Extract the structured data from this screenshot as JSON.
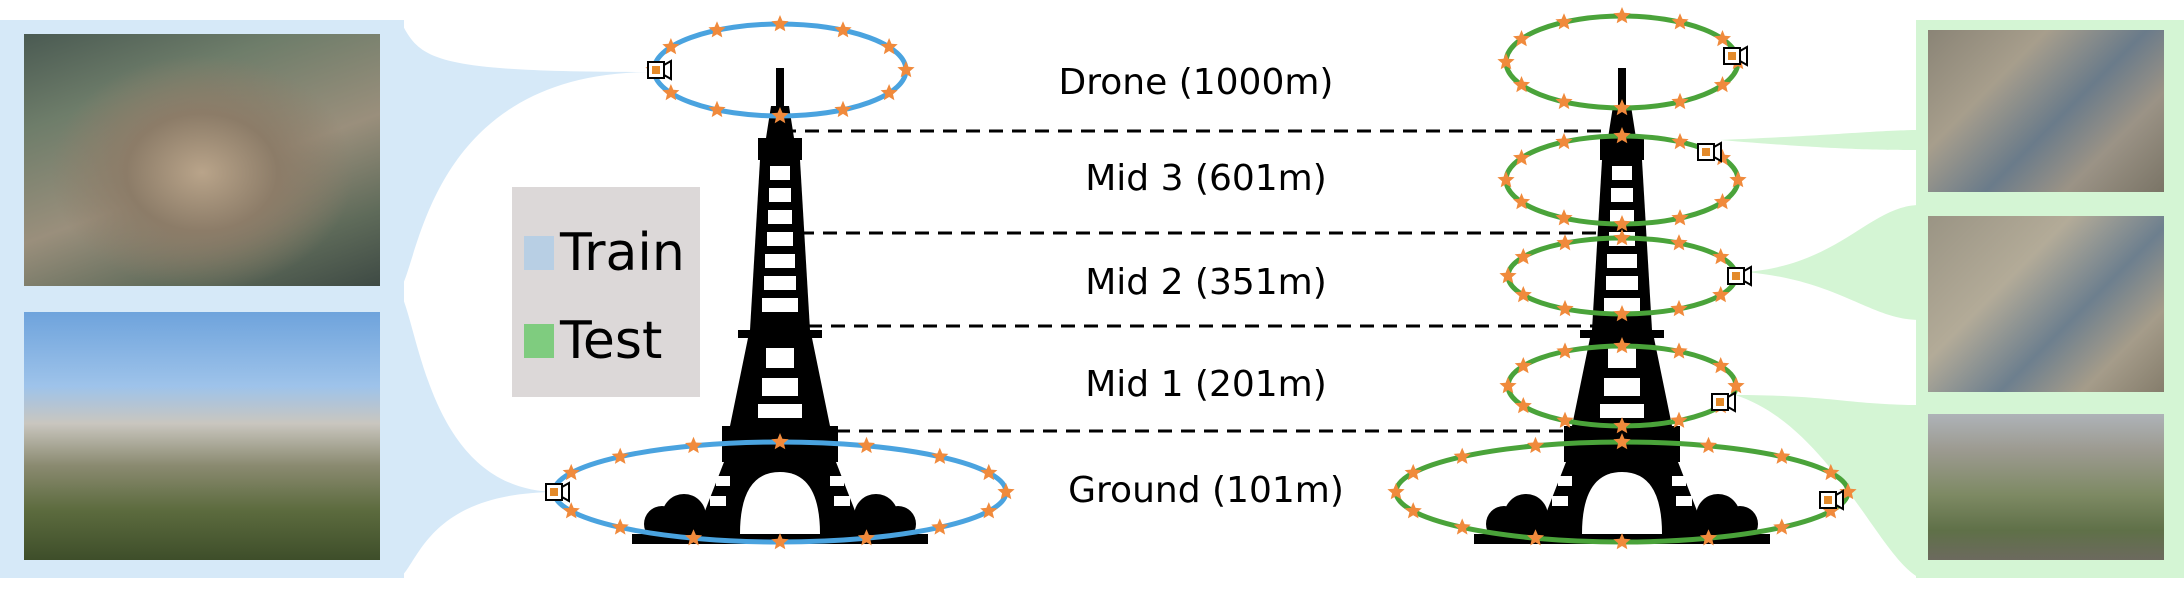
{
  "legend": {
    "train_label": "Train",
    "test_label": "Test",
    "train_color": "#b8cfe4",
    "test_color": "#7fcc7f"
  },
  "altitudes": [
    {
      "label": "Drone (1000m)"
    },
    {
      "label": "Mid 3 (601m)"
    },
    {
      "label": "Mid 2 (351m)"
    },
    {
      "label": "Mid 1 (201m)"
    },
    {
      "label": "Ground (101m)"
    }
  ],
  "colors": {
    "train_ring": "#4aa3df",
    "test_ring": "#4aa33a",
    "marker": "#f08a3c",
    "train_fan": "#d6e9f8",
    "test_fan": "#d4f5d4",
    "tower": "#000000"
  },
  "photos": {
    "train": [
      {
        "view": "aerial-oblique"
      },
      {
        "view": "ground-level"
      }
    ],
    "test": [
      {
        "view": "mid-3-aerial"
      },
      {
        "view": "mid-2-aerial"
      },
      {
        "view": "mid-1-aerial"
      }
    ]
  }
}
